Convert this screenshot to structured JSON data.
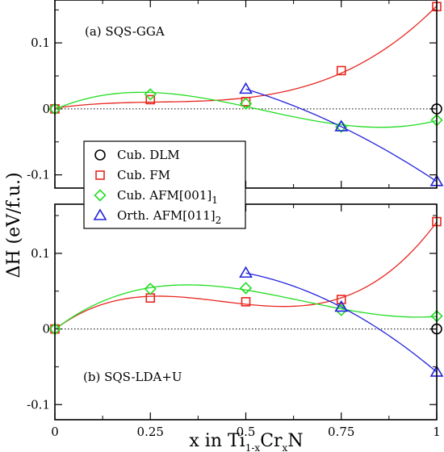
{
  "chart_data": [
    {
      "type": "line",
      "panel": "top",
      "annotation": "(a) SQS-GGA",
      "xlim": [
        0,
        1
      ],
      "ylim": [
        -0.12,
        0.165
      ],
      "y_ticks": [
        -0.1,
        0,
        0.1
      ],
      "y_tick_labels": [
        "-0.1",
        "0",
        "0.1"
      ],
      "reference_line": {
        "y": 0,
        "style": "dotted"
      },
      "series": [
        {
          "legend_index": 0,
          "marker": "circle",
          "color": "#000000",
          "x": [
            1.0
          ],
          "y": [
            0.0
          ],
          "fit_curve": false
        },
        {
          "legend_index": 1,
          "marker": "square",
          "color": "#e8261f",
          "x": [
            0,
            0.25,
            0.5,
            0.75,
            1.0
          ],
          "y": [
            0.0,
            0.014,
            0.011,
            0.058,
            0.155
          ],
          "fit_curve": true
        },
        {
          "legend_index": 2,
          "marker": "diamond",
          "color": "#22dd22",
          "x": [
            0,
            0.25,
            0.5,
            0.75,
            1.0
          ],
          "y": [
            0.0,
            0.022,
            0.008,
            -0.027,
            -0.017
          ],
          "fit_curve": true
        },
        {
          "legend_index": 3,
          "marker": "triangle",
          "color": "#2323dd",
          "x": [
            0.5,
            0.75,
            1.0
          ],
          "y": [
            0.03,
            -0.027,
            -0.11
          ],
          "fit_curve": true
        }
      ]
    },
    {
      "type": "line",
      "panel": "bottom",
      "annotation": "(b) SQS-LDA+U",
      "xlim": [
        0,
        1
      ],
      "ylim": [
        -0.12,
        0.165
      ],
      "x_ticks": [
        0,
        0.25,
        0.5,
        0.75,
        1
      ],
      "x_tick_labels": [
        "0",
        "0.25",
        "0.5",
        "0.75",
        "1"
      ],
      "y_ticks": [
        -0.1,
        0,
        0.1
      ],
      "y_tick_labels": [
        "-0.1",
        "0",
        "0.1"
      ],
      "reference_line": {
        "y": 0,
        "style": "dotted"
      },
      "series": [
        {
          "legend_index": 0,
          "marker": "circle",
          "color": "#000000",
          "x": [
            1.0
          ],
          "y": [
            0.0
          ],
          "fit_curve": false
        },
        {
          "legend_index": 1,
          "marker": "square",
          "color": "#e8261f",
          "x": [
            0,
            0.25,
            0.5,
            0.75,
            1.0
          ],
          "y": [
            0.0,
            0.041,
            0.036,
            0.039,
            0.142
          ],
          "fit_curve": true
        },
        {
          "legend_index": 2,
          "marker": "diamond",
          "color": "#22dd22",
          "x": [
            0,
            0.25,
            0.5,
            0.75,
            1.0
          ],
          "y": [
            0.0,
            0.053,
            0.054,
            0.025,
            0.017
          ],
          "fit_curve": true
        },
        {
          "legend_index": 3,
          "marker": "triangle",
          "color": "#2323dd",
          "x": [
            0.5,
            0.75,
            1.0
          ],
          "y": [
            0.074,
            0.029,
            -0.057
          ],
          "fit_curve": true
        }
      ]
    }
  ],
  "legend": {
    "placement": "left-middle",
    "entries": [
      {
        "text": "Cub. DLM",
        "sub": ""
      },
      {
        "text": "Cub. FM",
        "sub": ""
      },
      {
        "text": "Cub. AFM[001]",
        "sub": "1"
      },
      {
        "text": "Orth. AFM[011]",
        "sub": "2"
      }
    ]
  },
  "ylabel": "ΔH (eV/f.u.)",
  "xlabel": {
    "pre": "x in Ti",
    "sub1": "1-x",
    "mid": "Cr",
    "sub2": "x",
    "post": "N"
  }
}
